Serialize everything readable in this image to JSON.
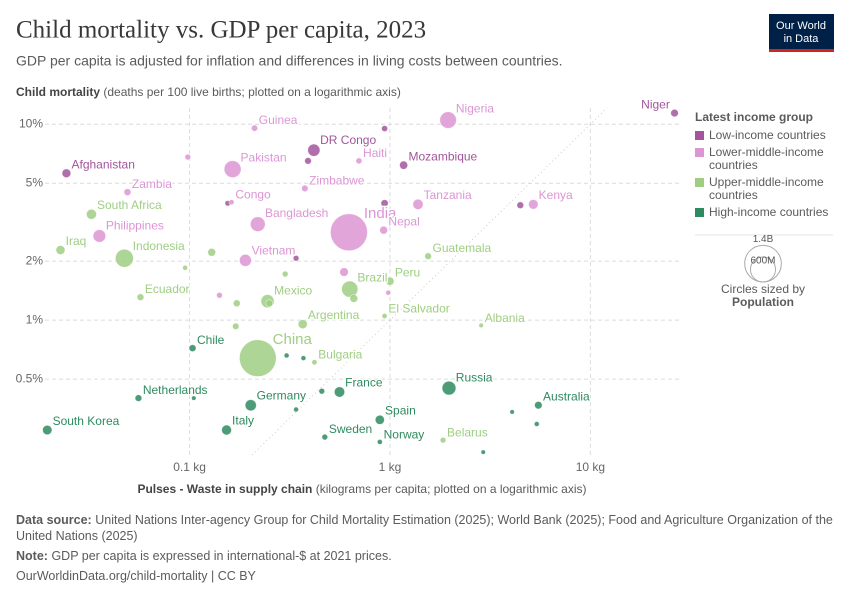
{
  "chart_data": {
    "type": "scatter",
    "title": "Child mortality vs. GDP per capita, 2023",
    "subtitle": "GDP per capita is adjusted for inflation and differences in living costs between countries.",
    "ylabel": "Child mortality",
    "ylabel_note": "(deaths per 100 live births; plotted on a logarithmic axis)",
    "xlabel": "Pulses - Waste in supply chain",
    "xlabel_note": "(kilograms per capita; plotted on a logarithmic axis)",
    "xscale": "log",
    "yscale": "log",
    "grid": true,
    "legend": "right",
    "xlim": [
      0.019,
      28
    ],
    "ylim": [
      0.205,
      12.1
    ],
    "xticks": [
      {
        "value": 0.1,
        "label": "0.1 kg"
      },
      {
        "value": 1,
        "label": "1 kg"
      },
      {
        "value": 10,
        "label": "10 kg"
      }
    ],
    "yticks": [
      {
        "value": 10,
        "label": "10%"
      },
      {
        "value": 5,
        "label": "5%"
      },
      {
        "value": 2,
        "label": "2%"
      },
      {
        "value": 1,
        "label": "1%"
      },
      {
        "value": 0.5,
        "label": "0.5%"
      }
    ],
    "legend_title": "Latest income group",
    "series": [
      {
        "name": "Low-income countries",
        "color": "#a2559c",
        "labels": [
          "Niger",
          "DR Congo",
          "Afghanistan",
          "Mozambique",
          null,
          null,
          null,
          null,
          null,
          null
        ],
        "x": [
          26.3,
          0.417,
          0.0243,
          1.17,
          0.94,
          0.39,
          4.47,
          0.94,
          0.155,
          0.34
        ],
        "values": [
          11.4,
          7.37,
          5.62,
          6.18,
          9.5,
          6.5,
          3.86,
          3.95,
          3.95,
          2.07
        ],
        "sizes": [
          27,
          105,
          42,
          34,
          12,
          18,
          18,
          23,
          8,
          10
        ]
      },
      {
        "name": "Lower-middle-income countries",
        "color": "#dd95d4",
        "labels": [
          "Nigeria",
          "Guinea",
          "Pakistan",
          "Haiti",
          "Zambia",
          "Congo",
          "Zimbabwe",
          "Tanzania",
          "Kenya",
          "Bangladesh",
          "India",
          "Nepal",
          "Philippines",
          "Vietnam",
          null,
          null,
          null,
          null
        ],
        "x": [
          1.95,
          0.211,
          0.164,
          0.7,
          0.049,
          0.162,
          0.376,
          1.38,
          5.19,
          0.219,
          0.624,
          0.93,
          0.0355,
          0.19,
          0.098,
          0.59,
          0.141,
          0.98
        ],
        "values": [
          10.5,
          9.55,
          5.9,
          6.5,
          4.5,
          4.0,
          4.7,
          3.9,
          3.9,
          3.09,
          2.81,
          2.88,
          2.69,
          2.02,
          6.8,
          1.76,
          1.34,
          1.38
        ],
        "sizes": [
          228,
          14,
          240,
          12,
          20,
          6,
          16,
          67,
          55,
          172,
          1430,
          30,
          115,
          100,
          10,
          40,
          10,
          5
        ]
      },
      {
        "name": "Upper-middle-income countries",
        "color": "#9fce83",
        "labels": [
          "South Africa",
          "Iraq",
          "Indonesia",
          "Guatemala",
          "Peru",
          "Brazil",
          "Ecuador",
          "Mexico",
          "El Salvador",
          "Argentina",
          "Albania",
          "China",
          "Bulgaria",
          "Belarus",
          null,
          null,
          null,
          null,
          null,
          null,
          null
        ],
        "x": [
          0.0324,
          0.0227,
          0.0473,
          1.55,
          1.0,
          0.63,
          0.0569,
          0.245,
          0.94,
          0.367,
          2.85,
          0.219,
          0.42,
          1.84,
          0.129,
          0.66,
          0.172,
          0.25,
          0.17,
          0.3,
          0.095
        ],
        "values": [
          3.47,
          2.28,
          2.07,
          2.12,
          1.58,
          1.44,
          1.31,
          1.25,
          1.05,
          0.954,
          0.94,
          0.64,
          0.61,
          0.244,
          2.22,
          1.29,
          1.22,
          1.22,
          0.93,
          1.72,
          1.85
        ],
        "sizes": [
          63,
          45,
          278,
          18,
          34,
          216,
          18,
          128,
          6,
          46,
          3,
          1410,
          6.5,
          9,
          30,
          30,
          20,
          20,
          15,
          10,
          5
        ]
      },
      {
        "name": "High-income countries",
        "color": "#2e8b5f",
        "labels": [
          "Chile",
          "Netherlands",
          "Russia",
          "France",
          "Germany",
          "Australia",
          "Spain",
          "South Korea",
          "Italy",
          "Sweden",
          "Norway",
          null,
          null,
          null,
          null,
          null,
          null,
          null,
          null
        ],
        "x": [
          0.1035,
          0.0556,
          1.97,
          0.56,
          0.202,
          5.5,
          0.89,
          0.0195,
          0.153,
          0.473,
          0.89,
          0.305,
          0.37,
          0.457,
          4.07,
          2.92,
          5.4,
          0.34,
          0.105
        ],
        "values": [
          0.72,
          0.4,
          0.45,
          0.43,
          0.368,
          0.368,
          0.31,
          0.275,
          0.275,
          0.253,
          0.239,
          0.66,
          0.64,
          0.434,
          0.34,
          0.212,
          0.295,
          0.35,
          0.4
        ],
        "sizes": [
          20,
          18,
          144,
          68,
          84,
          27,
          48,
          52,
          59,
          10,
          5.5,
          5,
          5,
          10,
          3,
          3,
          5,
          5,
          3
        ]
      }
    ],
    "size_legend": {
      "title": "Circles sized by",
      "variable": "Population",
      "sizes": [
        {
          "value": 1400,
          "label": "1.4B"
        },
        {
          "value": 600,
          "label": "600M"
        }
      ]
    }
  },
  "logo": [
    "Our World",
    "in Data"
  ],
  "footer": {
    "source_label": "Data source:",
    "source": "United Nations Inter-agency Group for Child Mortality Estimation (2025); World Bank (2025); Food and Agriculture Organization of the United Nations (2025)",
    "note_label": "Note:",
    "note": "GDP per capita is expressed in international-$ at 2021 prices.",
    "link": "OurWorldinData.org/child-mortality | CC BY"
  }
}
